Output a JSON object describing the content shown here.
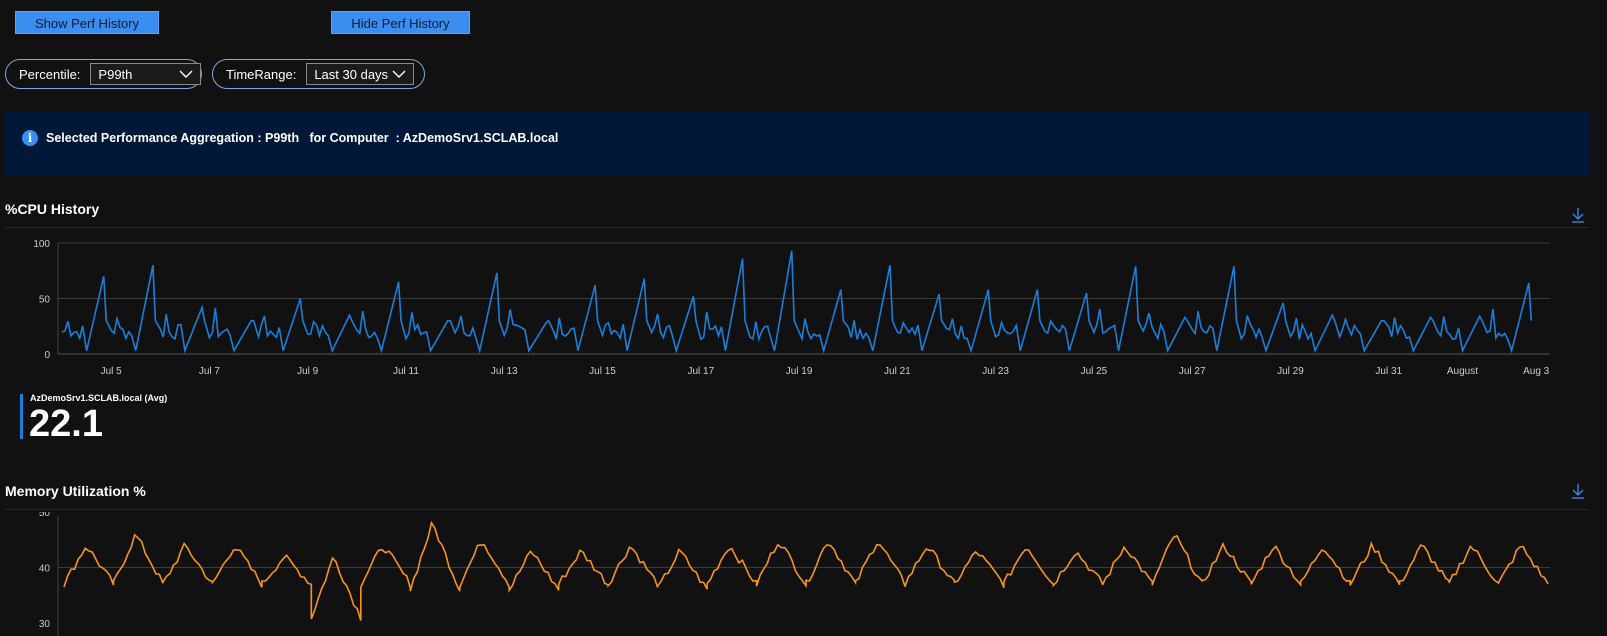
{
  "toolbar": {
    "show_label": "Show Perf History",
    "hide_label": "Hide Perf History"
  },
  "params": {
    "percentile": {
      "label": "Percentile:",
      "value": "P99th"
    },
    "timerange": {
      "label": "TimeRange:",
      "value": "Last 30 days"
    }
  },
  "info": {
    "text": "Selected Performance Aggregation : P99th   for Computer  : AzDemoSrv1.SCLAB.local",
    "icon": "info-icon",
    "color": "#3a8ef0"
  },
  "cpu_section": {
    "title": "%CPU History",
    "download_icon": "download-icon"
  },
  "memory_section": {
    "title": "Memory Utilization %",
    "download_icon": "download-icon"
  },
  "cpu_legend": {
    "name": "AzDemoSrv1.SCLAB.local (Avg)",
    "value": "22.1"
  },
  "colors": {
    "cpu_line": "#1a7fd9",
    "memory_line": "#f7941d",
    "button": "#3a8ef0",
    "info_bg": "#021838"
  },
  "chart_data": [
    {
      "type": "line",
      "title": "%CPU History",
      "ylim": [
        0,
        100
      ],
      "yticks": [
        "100",
        "50",
        "0"
      ],
      "xlabels": [
        "Jul 5",
        "Jul 7",
        "Jul 9",
        "Jul 11",
        "Jul 13",
        "Jul 15",
        "Jul 17",
        "Jul 19",
        "Jul 21",
        "Jul 23",
        "Jul 25",
        "Jul 27",
        "Jul 29",
        "Jul 31",
        "August",
        "Aug 3"
      ],
      "x_start": "Jul 4",
      "x_end": "Aug 3",
      "series": [
        {
          "name": "AzDemoSrv1.SCLAB.local (Avg)",
          "peaks": [
            {
              "date": "Jul 4 PM",
              "value": 70
            },
            {
              "date": "Jul 5 PM",
              "value": 80
            },
            {
              "date": "Jul 6 PM",
              "value": 42
            },
            {
              "date": "Jul 7 PM",
              "value": 30
            },
            {
              "date": "Jul 8 PM",
              "value": 50
            },
            {
              "date": "Jul 9 PM",
              "value": 35
            },
            {
              "date": "Jul 10 PM",
              "value": 65
            },
            {
              "date": "Jul 11 PM",
              "value": 30
            },
            {
              "date": "Jul 12 PM",
              "value": 73
            },
            {
              "date": "Jul 13 PM",
              "value": 28
            },
            {
              "date": "Jul 14 PM",
              "value": 62
            },
            {
              "date": "Jul 15 PM",
              "value": 68
            },
            {
              "date": "Jul 16 PM",
              "value": 52
            },
            {
              "date": "Jul 17 PM",
              "value": 86
            },
            {
              "date": "Jul 18 PM",
              "value": 93
            },
            {
              "date": "Jul 19 PM",
              "value": 58
            },
            {
              "date": "Jul 20 PM",
              "value": 80
            },
            {
              "date": "Jul 21 PM",
              "value": 54
            },
            {
              "date": "Jul 22 PM",
              "value": 58
            },
            {
              "date": "Jul 23 PM",
              "value": 58
            },
            {
              "date": "Jul 24 PM",
              "value": 55
            },
            {
              "date": "Jul 25 PM",
              "value": 79
            },
            {
              "date": "Jul 26 PM",
              "value": 33
            },
            {
              "date": "Jul 27 PM",
              "value": 79
            },
            {
              "date": "Jul 28 PM",
              "value": 46
            },
            {
              "date": "Jul 29 PM",
              "value": 35
            },
            {
              "date": "Jul 30 PM",
              "value": 30
            },
            {
              "date": "Jul 31 PM",
              "value": 33
            },
            {
              "date": "Aug 1 PM",
              "value": 34
            },
            {
              "date": "Aug 2 PM",
              "value": 64
            }
          ],
          "baseline": 20
        }
      ]
    },
    {
      "type": "line",
      "title": "Memory Utilization %",
      "ylim": [
        30,
        50
      ],
      "yticks": [
        "50",
        "40",
        "30"
      ],
      "series": [
        {
          "name": "Memory",
          "peaks": [
            44,
            46,
            44,
            44,
            42,
            42,
            44,
            48,
            45,
            43,
            43,
            44,
            43,
            44,
            45,
            45,
            45,
            44,
            43,
            44,
            43,
            44,
            46,
            44,
            44,
            44,
            44,
            44,
            44,
            44
          ],
          "troughs": [
            37,
            37,
            37,
            37,
            37,
            31,
            37,
            36,
            37,
            36,
            37,
            37,
            36,
            37,
            37,
            37,
            37,
            37,
            37,
            37,
            37,
            37,
            37,
            37,
            37,
            37,
            37,
            37,
            37,
            37
          ],
          "color": "#f7941d"
        }
      ]
    }
  ]
}
